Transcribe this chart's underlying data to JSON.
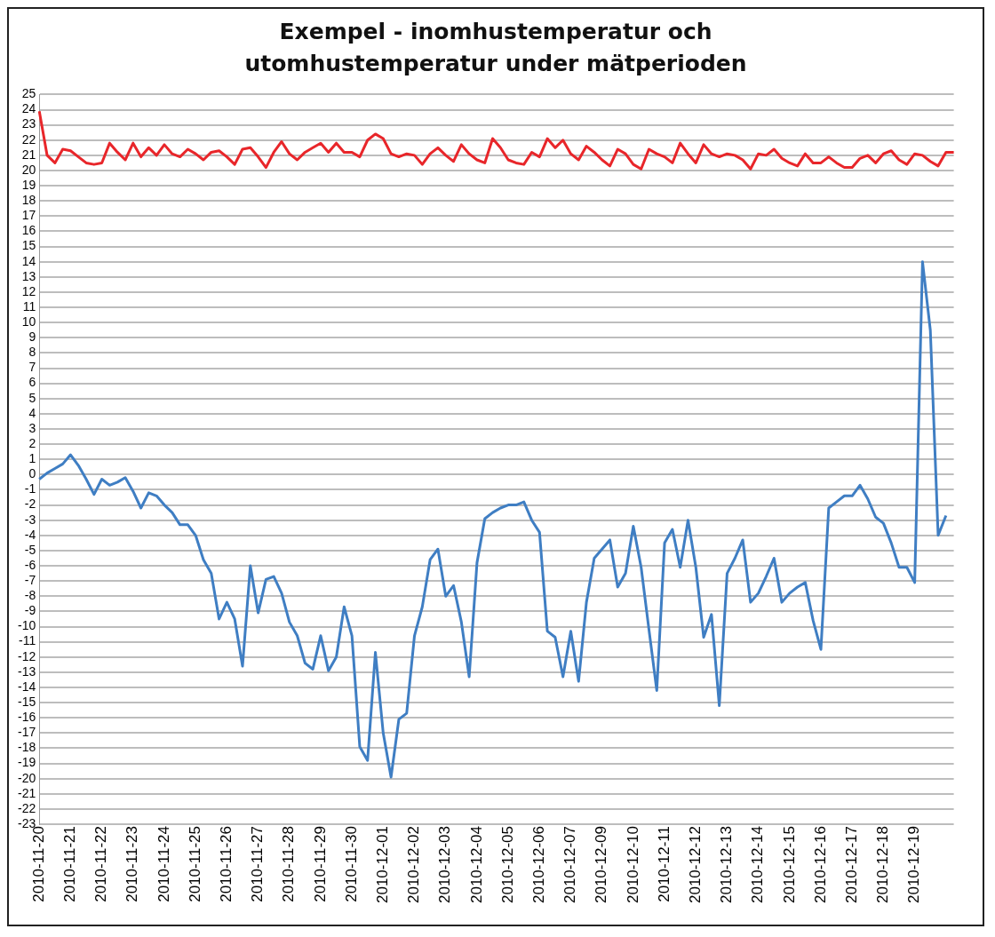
{
  "chart_data": {
    "type": "line",
    "title": "Exempel - inomhustemperatur och utomhustemperatur under mätperioden",
    "categories": [
      "2010-11-20",
      null,
      null,
      null,
      "2010-11-21",
      null,
      null,
      null,
      "2010-11-22",
      null,
      null,
      null,
      "2010-11-23",
      null,
      null,
      null,
      "2010-11-24",
      null,
      null,
      null,
      "2010-11-25",
      null,
      null,
      null,
      "2010-11-26",
      null,
      null,
      null,
      "2010-11-27",
      null,
      null,
      null,
      "2010-11-28",
      null,
      null,
      null,
      "2010-11-29",
      null,
      null,
      null,
      "2010-11-30",
      null,
      null,
      null,
      "2010-12-01",
      null,
      null,
      null,
      "2010-12-02",
      null,
      null,
      null,
      "2010-12-03",
      null,
      null,
      null,
      "2010-12-04",
      null,
      null,
      null,
      "2010-12-05",
      null,
      null,
      null,
      "2010-12-06",
      null,
      null,
      null,
      "2010-12-07",
      null,
      null,
      null,
      "2010-12-09",
      null,
      null,
      null,
      "2010-12-10",
      null,
      null,
      null,
      "2010-12-11",
      null,
      null,
      null,
      "2010-12-12",
      null,
      null,
      null,
      "2010-12-13",
      null,
      null,
      null,
      "2010-12-14",
      null,
      null,
      null,
      "2010-12-15",
      null,
      null,
      null,
      "2010-12-16",
      null,
      null,
      null,
      "2010-12-17",
      null,
      null,
      null,
      "2010-12-18",
      null,
      null,
      null,
      "2010-12-19",
      null,
      null,
      null,
      null,
      null
    ],
    "series": [
      {
        "color": "#e8262a",
        "values": [
          23.9,
          21.0,
          20.5,
          21.4,
          21.3,
          20.9,
          20.5,
          20.4,
          20.5,
          21.8,
          21.2,
          20.7,
          21.8,
          20.9,
          21.5,
          21.0,
          21.7,
          21.1,
          20.9,
          21.4,
          21.1,
          20.7,
          21.2,
          21.3,
          20.9,
          20.4,
          21.4,
          21.5,
          20.9,
          20.2,
          21.2,
          21.9,
          21.1,
          20.7,
          21.2,
          21.5,
          21.8,
          21.2,
          21.8,
          21.2,
          21.2,
          20.9,
          22.0,
          22.4,
          22.1,
          21.1,
          20.9,
          21.1,
          21.0,
          20.4,
          21.1,
          21.5,
          21.0,
          20.6,
          21.7,
          21.1,
          20.7,
          20.5,
          22.1,
          21.5,
          20.7,
          20.5,
          20.4,
          21.2,
          20.9,
          22.1,
          21.5,
          22.0,
          21.1,
          20.7,
          21.6,
          21.2,
          20.7,
          20.3,
          21.4,
          21.1,
          20.4,
          20.1,
          21.4,
          21.1,
          20.9,
          20.5,
          21.8,
          21.1,
          20.5,
          21.7,
          21.1,
          20.9,
          21.1,
          21.0,
          20.7,
          20.1,
          21.1,
          21.0,
          21.4,
          20.8,
          20.5,
          20.3,
          21.1,
          20.5,
          20.5,
          20.9,
          20.5,
          20.2,
          20.2,
          20.8,
          21.0,
          20.5,
          21.1,
          21.3,
          20.7,
          20.4,
          21.1,
          21.0,
          20.6,
          20.3,
          21.2,
          21.2
        ]
      },
      {
        "color": "#3f7ec3",
        "values": [
          -0.3,
          0.1,
          0.4,
          0.7,
          1.3,
          0.6,
          -0.3,
          -1.3,
          -0.3,
          -0.7,
          -0.5,
          -0.2,
          -1.1,
          -2.2,
          -1.2,
          -1.4,
          -2.0,
          -2.5,
          -3.3,
          -3.3,
          -4.0,
          -5.6,
          -6.5,
          -9.5,
          -8.4,
          -9.5,
          -12.6,
          -6.0,
          -9.1,
          -6.9,
          -6.7,
          -7.8,
          -9.7,
          -10.6,
          -12.4,
          -12.8,
          -10.6,
          -12.9,
          -12.0,
          -8.7,
          -10.6,
          -17.9,
          -18.8,
          -11.7,
          -17.0,
          -19.9,
          -16.1,
          -15.7,
          -10.6,
          -8.7,
          -5.6,
          -4.9,
          -8.0,
          -7.3,
          -9.7,
          -13.3,
          -5.8,
          -2.9,
          -2.5,
          -2.2,
          -2.0,
          -2.0,
          -1.8,
          -3.0,
          -3.8,
          -10.3,
          -10.7,
          -13.3,
          -10.3,
          -13.6,
          -8.4,
          -5.5,
          -4.9,
          -4.3,
          -7.4,
          -6.5,
          -3.4,
          -6.1,
          -10.2,
          -14.2,
          -4.5,
          -3.6,
          -6.1,
          -3.0,
          -6.1,
          -10.7,
          -9.2,
          -15.2,
          -6.5,
          -5.5,
          -4.3,
          -8.4,
          -7.8,
          -6.7,
          -5.5,
          -8.4,
          -7.8,
          -7.4,
          -7.1,
          -9.6,
          -11.5,
          -2.2,
          -1.8,
          -1.4,
          -1.4,
          -0.7,
          -1.6,
          -2.8,
          -3.2,
          -4.5,
          -6.1,
          -6.1,
          -7.1,
          14.0,
          9.5,
          -4.0,
          -2.7,
          null
        ]
      }
    ],
    "ylim": [
      -23,
      25
    ],
    "yticks": [
      -23,
      -22,
      -21,
      -20,
      -19,
      -18,
      -17,
      -16,
      -15,
      -14,
      -13,
      -12,
      -11,
      -10,
      -9,
      -8,
      -7,
      -6,
      -5,
      -4,
      -3,
      -2,
      -1,
      0,
      1,
      2,
      3,
      4,
      5,
      6,
      7,
      8,
      9,
      10,
      11,
      12,
      13,
      14,
      15,
      16,
      17,
      18,
      19,
      20,
      21,
      22,
      23,
      24,
      25
    ],
    "grid": "y",
    "legend": false,
    "marker": "none",
    "line_style": "solid"
  }
}
